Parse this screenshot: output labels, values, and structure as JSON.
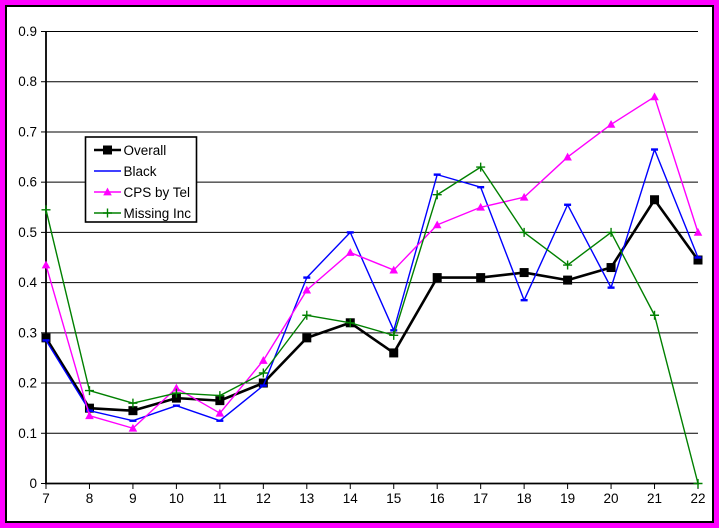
{
  "window": {
    "background": "#ffffff",
    "frame_border_color": "#ff00ff",
    "inner_border_color": "#000000"
  },
  "chart_data": {
    "type": "line",
    "title": "",
    "xlabel": "",
    "ylabel": "",
    "x": [
      "7",
      "8",
      "9",
      "10",
      "11",
      "12",
      "13",
      "14",
      "15",
      "16",
      "17",
      "18",
      "19",
      "20",
      "21",
      "22"
    ],
    "ylim": [
      0,
      0.9
    ],
    "ytick_step": 0.1,
    "ytick_labels": [
      "0",
      "0.1",
      "0.2",
      "0.3",
      "0.4",
      "0.5",
      "0.6",
      "0.7",
      "0.8",
      "0.9"
    ],
    "grid": "horizontal",
    "gridline_color": "#000000",
    "plot_background": "#ffffff",
    "legend_position": "upper-left-inside",
    "series": [
      {
        "name": "Overall",
        "color": "#000000",
        "marker": "square",
        "line_weight": "bold",
        "values": [
          0.29,
          0.15,
          0.145,
          0.17,
          0.165,
          0.2,
          0.29,
          0.32,
          0.26,
          0.41,
          0.41,
          0.42,
          0.405,
          0.43,
          0.565,
          0.445
        ]
      },
      {
        "name": "Black",
        "color": "#0000ff",
        "marker": "dash",
        "line_weight": "normal",
        "values": [
          0.285,
          0.145,
          0.125,
          0.155,
          0.125,
          0.195,
          0.41,
          0.5,
          0.305,
          0.615,
          0.59,
          0.365,
          0.555,
          0.39,
          0.665,
          0.45
        ]
      },
      {
        "name": "CPS by Tel",
        "color": "#ff00ff",
        "marker": "triangle",
        "line_weight": "normal",
        "values": [
          0.435,
          0.135,
          0.11,
          0.19,
          0.14,
          0.245,
          0.385,
          0.46,
          0.425,
          0.515,
          0.55,
          0.57,
          0.65,
          0.715,
          0.77,
          0.5
        ]
      },
      {
        "name": "Missing Inc",
        "color": "#008000",
        "marker": "plus",
        "line_weight": "normal",
        "values": [
          0.545,
          0.185,
          0.16,
          0.18,
          0.175,
          0.22,
          0.335,
          0.32,
          0.295,
          0.575,
          0.63,
          0.5,
          0.435,
          0.5,
          0.335,
          0
        ]
      }
    ]
  }
}
